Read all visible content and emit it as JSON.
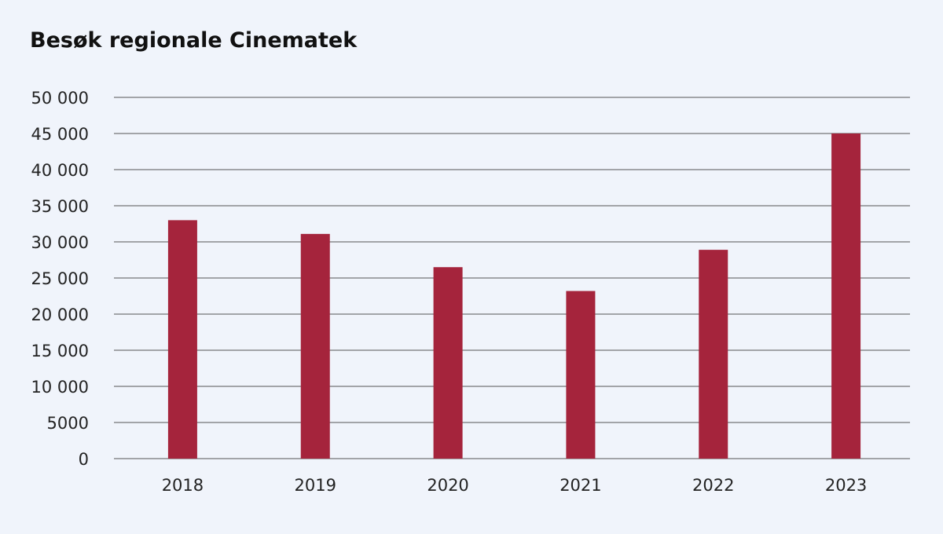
{
  "chart_data": {
    "type": "bar",
    "title": "Besøk regionale Cinematek",
    "xlabel": "",
    "ylabel": "",
    "categories": [
      "2018",
      "2019",
      "2020",
      "2021",
      "2022",
      "2023"
    ],
    "values": [
      33000,
      31100,
      26500,
      23200,
      28900,
      45000
    ],
    "ylim": [
      0,
      50000
    ],
    "yticks": [
      0,
      5000,
      10000,
      15000,
      20000,
      25000,
      30000,
      35000,
      40000,
      45000,
      50000
    ],
    "ytick_labels": [
      "0",
      "5000",
      "10 000",
      "15 000",
      "20 000",
      "25 000",
      "30 000",
      "35 000",
      "40 000",
      "45 000",
      "50 000"
    ],
    "grid": true,
    "legend": "none",
    "colors": {
      "bar": "#a5243c",
      "grid": "#555555",
      "background": "#f0f4fb"
    }
  }
}
